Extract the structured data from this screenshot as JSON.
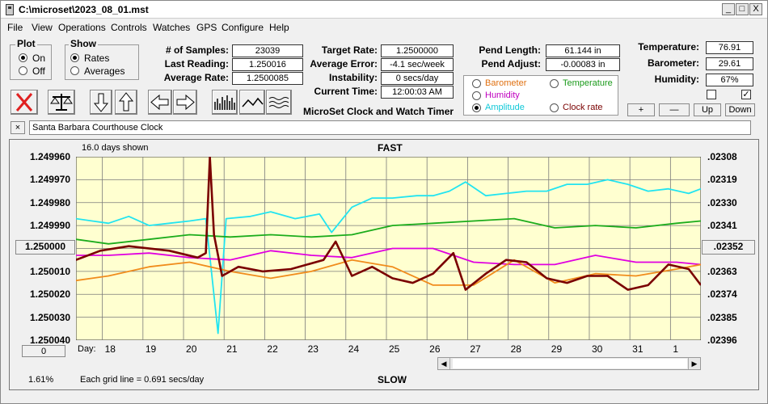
{
  "window": {
    "title": "C:\\microset\\2023_08_01.mst",
    "btn_min": "_",
    "btn_max": "□",
    "btn_close": "X"
  },
  "menu": [
    "File",
    "View",
    "Operations",
    "Controls",
    "Watches",
    "GPS",
    "Configure",
    "Help"
  ],
  "plot": {
    "title": "Plot",
    "on": "On",
    "off": "Off"
  },
  "show": {
    "title": "Show",
    "rates": "Rates",
    "averages": "Averages"
  },
  "stats": {
    "samples_label": "# of Samples:",
    "samples": "23039",
    "last_label": "Last Reading:",
    "last": "1.250016",
    "avg_label": "Average Rate:",
    "avg": "1.2500085",
    "target_label": "Target Rate:",
    "target": "1.2500000",
    "avgerr_label": "Average Error:",
    "avgerr": "-4.1 sec/week",
    "instab_label": "Instability:",
    "instab": "0 secs/day",
    "time_label": "Current Time:",
    "time": "12:00:03 AM",
    "pendlen_label": "Pend Length:",
    "pendlen": "61.144 in",
    "pendadj_label": "Pend Adjust:",
    "pendadj": "-0.00083 in",
    "temp_label": "Temperature:",
    "temp": "76.91",
    "baro_label": "Barometer:",
    "baro": "29.61",
    "hum_label": "Humidity:",
    "hum": "67%"
  },
  "app_caption": "MicroSet Clock and Watch Timer",
  "sensor_select": {
    "barometer": "Barometer",
    "temperature": "Temperature",
    "humidity": "Humidity",
    "amplitude": "Amplitude",
    "clockrate": "Clock rate"
  },
  "buttons": {
    "plus": "+",
    "minus": "—",
    "up": "Up",
    "down": "Down",
    "close_x": "×"
  },
  "clock_name": "Santa Barbara Courthouse Clock",
  "chart": {
    "days_shown": "16.0 days shown",
    "fast": "FAST",
    "slow": "SLOW",
    "grid_note": "Each grid line = 0.691 secs/day",
    "percent": "1.61%",
    "day_label": "Day:",
    "center_left": "1.250000",
    "center_right": ".02352",
    "zero_btn": "0"
  },
  "chart_data": {
    "type": "line",
    "ylabels_left": [
      "1.249960",
      "1.249970",
      "1.249980",
      "1.249990",
      "1.250000",
      "1.250010",
      "1.250020",
      "1.250030",
      "1.250040"
    ],
    "ylabels_right": [
      ".02308",
      ".02319",
      ".02330",
      ".02341",
      ".02352",
      ".02363",
      ".02374",
      ".02385",
      ".02396"
    ],
    "ylim_left": [
      1.24996,
      1.25004
    ],
    "x_ticks": [
      "18",
      "19",
      "20",
      "21",
      "22",
      "23",
      "24",
      "25",
      "26",
      "27",
      "28",
      "29",
      "30",
      "31",
      "1"
    ],
    "x_range": [
      17.2,
      32.6
    ],
    "grid": true,
    "colors": {
      "rate": "#7a0000",
      "amplitude": "#22e4f0",
      "temperature": "#1cac1c",
      "barometer": "#f08c1c",
      "humidity": "#e000e0",
      "background": "#ffffd0"
    },
    "series": [
      {
        "name": "Amplitude",
        "color": "#22e4f0",
        "points": [
          [
            17.2,
            1.249987
          ],
          [
            17.6,
            1.249988
          ],
          [
            18.0,
            1.249989
          ],
          [
            18.5,
            1.249986
          ],
          [
            19.0,
            1.24999
          ],
          [
            19.5,
            1.249989
          ],
          [
            20.0,
            1.249988
          ],
          [
            20.4,
            1.249987
          ],
          [
            20.7,
            1.250037
          ],
          [
            20.9,
            1.249987
          ],
          [
            21.5,
            1.249986
          ],
          [
            22.0,
            1.249984
          ],
          [
            22.6,
            1.249987
          ],
          [
            23.2,
            1.249985
          ],
          [
            23.5,
            1.249993
          ],
          [
            24.0,
            1.249982
          ],
          [
            24.5,
            1.249978
          ],
          [
            25.0,
            1.249978
          ],
          [
            25.6,
            1.249977
          ],
          [
            26.0,
            1.249977
          ],
          [
            26.4,
            1.249975
          ],
          [
            26.8,
            1.249971
          ],
          [
            27.3,
            1.249977
          ],
          [
            27.8,
            1.249976
          ],
          [
            28.3,
            1.249975
          ],
          [
            28.8,
            1.249975
          ],
          [
            29.3,
            1.249972
          ],
          [
            29.8,
            1.249972
          ],
          [
            30.3,
            1.24997
          ],
          [
            30.8,
            1.249972
          ],
          [
            31.3,
            1.249975
          ],
          [
            31.8,
            1.249974
          ],
          [
            32.3,
            1.249976
          ],
          [
            32.6,
            1.249974
          ]
        ]
      },
      {
        "name": "Temperature",
        "color": "#1cac1c",
        "points": [
          [
            17.2,
            1.249996
          ],
          [
            18.0,
            1.249998
          ],
          [
            19.0,
            1.249996
          ],
          [
            20.0,
            1.249994
          ],
          [
            21.0,
            1.249995
          ],
          [
            22.0,
            1.249994
          ],
          [
            23.0,
            1.249995
          ],
          [
            24.0,
            1.249994
          ],
          [
            25.0,
            1.24999
          ],
          [
            26.0,
            1.249989
          ],
          [
            27.0,
            1.249988
          ],
          [
            28.0,
            1.249987
          ],
          [
            29.0,
            1.249991
          ],
          [
            30.0,
            1.24999
          ],
          [
            31.0,
            1.249991
          ],
          [
            32.0,
            1.249989
          ],
          [
            32.6,
            1.249988
          ]
        ]
      },
      {
        "name": "Humidity",
        "color": "#e000e0",
        "points": [
          [
            17.2,
            1.250003
          ],
          [
            18.0,
            1.250003
          ],
          [
            19.0,
            1.250002
          ],
          [
            20.0,
            1.250004
          ],
          [
            21.0,
            1.250005
          ],
          [
            22.0,
            1.250001
          ],
          [
            23.0,
            1.250003
          ],
          [
            24.0,
            1.250004
          ],
          [
            25.0,
            1.25
          ],
          [
            26.0,
            1.25
          ],
          [
            27.0,
            1.250006
          ],
          [
            28.0,
            1.250007
          ],
          [
            29.0,
            1.250007
          ],
          [
            30.0,
            1.250003
          ],
          [
            31.0,
            1.250006
          ],
          [
            32.0,
            1.250006
          ],
          [
            32.6,
            1.250007
          ]
        ]
      },
      {
        "name": "Barometer",
        "color": "#f08c1c",
        "points": [
          [
            17.2,
            1.250014
          ],
          [
            18.0,
            1.250012
          ],
          [
            19.0,
            1.250008
          ],
          [
            20.0,
            1.250006
          ],
          [
            21.0,
            1.25001
          ],
          [
            22.0,
            1.250013
          ],
          [
            23.0,
            1.25001
          ],
          [
            24.0,
            1.250005
          ],
          [
            25.0,
            1.250008
          ],
          [
            26.0,
            1.250016
          ],
          [
            27.0,
            1.250016
          ],
          [
            28.0,
            1.250005
          ],
          [
            29.0,
            1.250015
          ],
          [
            30.0,
            1.250011
          ],
          [
            31.0,
            1.250012
          ],
          [
            32.0,
            1.250009
          ],
          [
            32.6,
            1.250007
          ]
        ]
      },
      {
        "name": "Clock rate",
        "color": "#7a0000",
        "points": [
          [
            17.2,
            1.250005
          ],
          [
            17.8,
            1.250001
          ],
          [
            18.5,
            1.249999
          ],
          [
            19.5,
            1.250001
          ],
          [
            20.2,
            1.250004
          ],
          [
            20.4,
            1.250002
          ],
          [
            20.5,
            1.24996
          ],
          [
            20.6,
            1.249994
          ],
          [
            20.8,
            1.250012
          ],
          [
            21.2,
            1.250008
          ],
          [
            21.8,
            1.25001
          ],
          [
            22.5,
            1.250009
          ],
          [
            23.3,
            1.250005
          ],
          [
            23.6,
            1.249997
          ],
          [
            24.0,
            1.250012
          ],
          [
            24.5,
            1.250008
          ],
          [
            25.0,
            1.250013
          ],
          [
            25.5,
            1.250015
          ],
          [
            26.0,
            1.250011
          ],
          [
            26.5,
            1.250002
          ],
          [
            26.8,
            1.250018
          ],
          [
            27.3,
            1.250011
          ],
          [
            27.8,
            1.250005
          ],
          [
            28.3,
            1.250006
          ],
          [
            28.8,
            1.250013
          ],
          [
            29.3,
            1.250015
          ],
          [
            29.8,
            1.250012
          ],
          [
            30.3,
            1.250012
          ],
          [
            30.8,
            1.250018
          ],
          [
            31.3,
            1.250016
          ],
          [
            31.8,
            1.250007
          ],
          [
            32.3,
            1.250009
          ],
          [
            32.6,
            1.250016
          ]
        ]
      }
    ]
  }
}
